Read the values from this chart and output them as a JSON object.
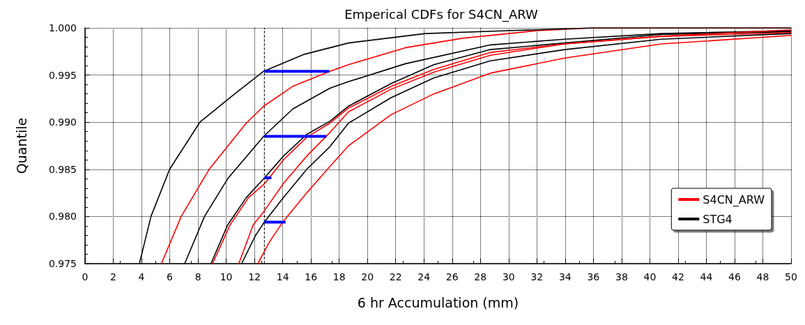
{
  "chart_data": {
    "type": "line",
    "title": "Emperical CDFs for S4CN_ARW",
    "xlabel": "6 hr Accumulation (mm)",
    "ylabel": "Quantile",
    "xlim": [
      0,
      50
    ],
    "xticks": [
      0,
      2,
      4,
      6,
      8,
      10,
      12,
      14,
      16,
      18,
      20,
      22,
      24,
      26,
      28,
      30,
      32,
      34,
      36,
      38,
      40,
      42,
      44,
      46,
      48,
      50
    ],
    "ylim": [
      0.975,
      1.0
    ],
    "yticks": [
      {
        "value": 0.975,
        "label": "0.975"
      },
      {
        "value": 0.98,
        "label": "0.980"
      },
      {
        "value": 0.985,
        "label": "0.985"
      },
      {
        "value": 0.99,
        "label": "0.990"
      },
      {
        "value": 0.995,
        "label": "0.995"
      },
      {
        "value": 1.0,
        "label": "1.000"
      }
    ],
    "grid": true,
    "legend": "bottom right",
    "marker": "none",
    "line_style": "solid",
    "ref_lines": [
      {
        "axis": "x",
        "value": 12.7,
        "color": "#000000",
        "line_style": "dashed"
      }
    ],
    "series": [
      {
        "name": "S4CN_ARW",
        "color": "#ff0000",
        "x": [
          5.41,
          6.81,
          8.79,
          11.42,
          12.65,
          14.71,
          17.34,
          18.66,
          22.69,
          26.72,
          31.96,
          36,
          50
        ],
        "values": [
          0.975,
          0.98,
          0.985,
          0.9899,
          0.9917,
          0.9938,
          0.9954,
          0.9961,
          0.9979,
          0.9989,
          0.9997,
          1.0,
          1.0
        ]
      },
      {
        "name": "STG4",
        "color": "#000000",
        "x": [
          3.85,
          4.67,
          5.99,
          8.13,
          10.43,
          12.65,
          15.53,
          18.66,
          24.1,
          29.9,
          36,
          50
        ],
        "values": [
          0.975,
          0.98,
          0.985,
          0.99,
          0.9928,
          0.9954,
          0.9972,
          0.9984,
          0.9994,
          0.9997,
          1.0,
          1.0
        ]
      },
      {
        "color": "#000000",
        "x": [
          7.06,
          8.46,
          10.1,
          12.65,
          14.71,
          17.34,
          18.66,
          22.69,
          28.73,
          33.96,
          40.82,
          50
        ],
        "values": [
          0.975,
          0.98,
          0.984,
          0.9885,
          0.9914,
          0.9936,
          0.9943,
          0.9962,
          0.9982,
          0.9988,
          0.9994,
          0.9997
        ]
      },
      {
        "color": "#000000",
        "x": [
          8.92,
          10.1,
          11.42,
          12.65,
          14.05,
          15.7,
          17.34,
          18.66,
          21.68,
          24.7,
          28.7,
          33.96,
          40.8,
          50
        ],
        "values": [
          0.975,
          0.9791,
          0.982,
          0.984,
          0.9864,
          0.9887,
          0.9901,
          0.9917,
          0.9941,
          0.9961,
          0.9977,
          0.9984,
          0.9993,
          0.9996
        ]
      },
      {
        "color": "#ff0000",
        "x": [
          9.03,
          10.27,
          11.58,
          12.73,
          14.05,
          15.7,
          17.34,
          18.66,
          21.68,
          24.7,
          28.7,
          33.96,
          40.8,
          50
        ],
        "values": [
          0.975,
          0.9791,
          0.982,
          0.9835,
          0.986,
          0.9884,
          0.9899,
          0.9915,
          0.9938,
          0.9956,
          0.9974,
          0.9983,
          0.9991,
          0.9995
        ]
      },
      {
        "color": "#ff0000",
        "x": [
          10.89,
          11.91,
          12.65,
          14.05,
          15.7,
          17.34,
          18.66,
          21.68,
          24.7,
          28.7,
          33.96,
          40.8,
          50
        ],
        "values": [
          0.975,
          0.9791,
          0.9805,
          0.9835,
          0.9864,
          0.9889,
          0.9911,
          0.9935,
          0.9953,
          0.9971,
          0.9983,
          0.9991,
          0.9998
        ]
      },
      {
        "color": "#000000",
        "x": [
          11.09,
          12.08,
          12.65,
          14.05,
          15.7,
          17.34,
          18.66,
          21.68,
          24.7,
          28.7,
          33.96,
          40.8,
          50
        ],
        "values": [
          0.975,
          0.978,
          0.9793,
          0.982,
          0.985,
          0.9874,
          0.9899,
          0.9926,
          0.9947,
          0.9965,
          0.9977,
          0.9988,
          0.9994
        ]
      },
      {
        "color": "#ff0000",
        "x": [
          12.24,
          13.06,
          14.05,
          15.7,
          17.34,
          18.66,
          21.68,
          24.7,
          28.7,
          33.96,
          40.8,
          50
        ],
        "values": [
          0.975,
          0.9773,
          0.9795,
          0.9825,
          0.9853,
          0.9875,
          0.9908,
          0.993,
          0.9952,
          0.9968,
          0.9983,
          0.9992
        ]
      },
      {
        "color": "#0000ff",
        "x": [
          12.7,
          17.3
        ],
        "values": [
          0.9954,
          0.9954
        ]
      },
      {
        "color": "#0000ff",
        "x": [
          12.7,
          17.1
        ],
        "values": [
          0.9885,
          0.9885
        ]
      },
      {
        "color": "#0000ff",
        "x": [
          12.7,
          13.2
        ],
        "values": [
          0.9841,
          0.9841
        ]
      },
      {
        "color": "#0000ff",
        "x": [
          12.7,
          14.2
        ],
        "values": [
          0.9794,
          0.9794
        ]
      }
    ]
  }
}
